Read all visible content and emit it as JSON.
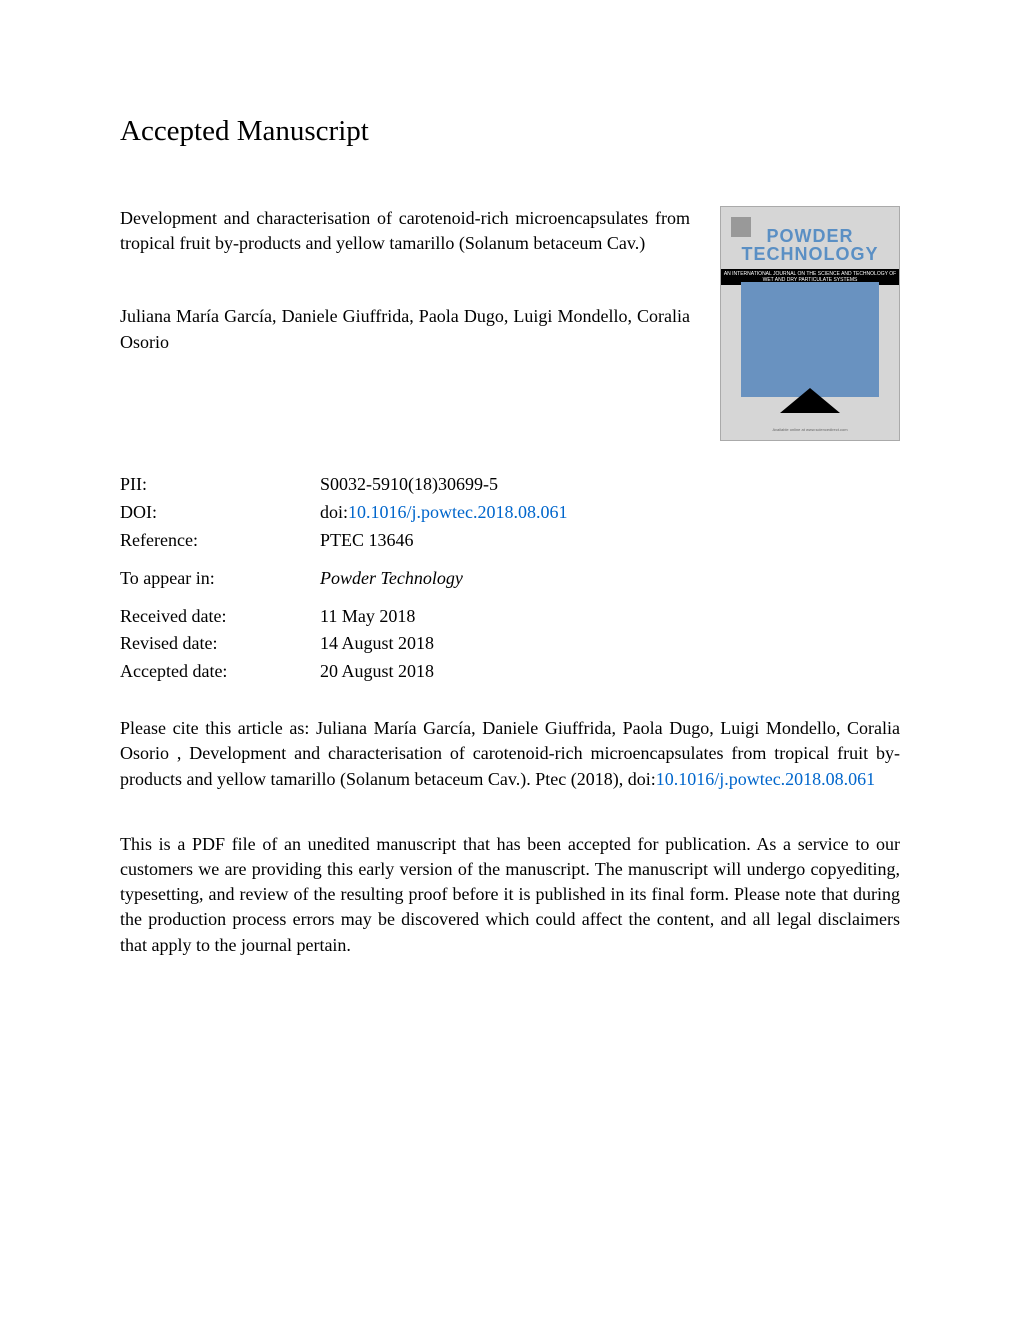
{
  "heading": "Accepted Manuscript",
  "article_title": "Development and characterisation of carotenoid-rich microencapsulates from tropical fruit by-products and yellow tamarillo (Solanum betaceum Cav.)",
  "authors": "Juliana María García, Daniele Giuffrida, Paola Dugo, Luigi Mondello, Coralia Osorio",
  "journal_cover": {
    "title_line1": "POWDER",
    "title_line2": "TECHNOLOGY",
    "subtitle": "AN INTERNATIONAL JOURNAL ON THE SCIENCE AND TECHNOLOGY OF WET AND DRY PARTICULATE SYSTEMS",
    "footer": "Available online at www.sciencedirect.com",
    "colors": {
      "background": "#d6d6d6",
      "title_color": "#5a8fc4",
      "image_color": "#6992c0",
      "triangle_color": "#000000"
    }
  },
  "meta": {
    "pii_label": "PII:",
    "pii_value": "S0032-5910(18)30699-5",
    "doi_label": "DOI:",
    "doi_prefix": "doi:",
    "doi_link": "10.1016/j.powtec.2018.08.061",
    "reference_label": "Reference:",
    "reference_value": "PTEC 13646",
    "appear_label": "To appear in:",
    "appear_value": "Powder Technology",
    "received_label": "Received date:",
    "received_value": "11 May 2018",
    "revised_label": "Revised date:",
    "revised_value": "14 August 2018",
    "accepted_label": "Accepted date:",
    "accepted_value": "20 August 2018"
  },
  "citation": {
    "prefix": "Please cite this article as: Juliana María García, Daniele Giuffrida, Paola Dugo, Luigi Mondello, Coralia Osorio , Development and characterisation of carotenoid-rich microencapsulates from tropical fruit by-products and yellow tamarillo (Solanum betaceum Cav.). Ptec (2018), doi:",
    "link": "10.1016/j.powtec.2018.08.061"
  },
  "disclaimer": "This is a PDF file of an unedited manuscript that has been accepted for publication. As a service to our customers we are providing this early version of the manuscript. The manuscript will undergo copyediting, typesetting, and review of the resulting proof before it is published in its final form. Please note that during the production process errors may be discovered which could affect the content, and all legal disclaimers that apply to the journal pertain."
}
